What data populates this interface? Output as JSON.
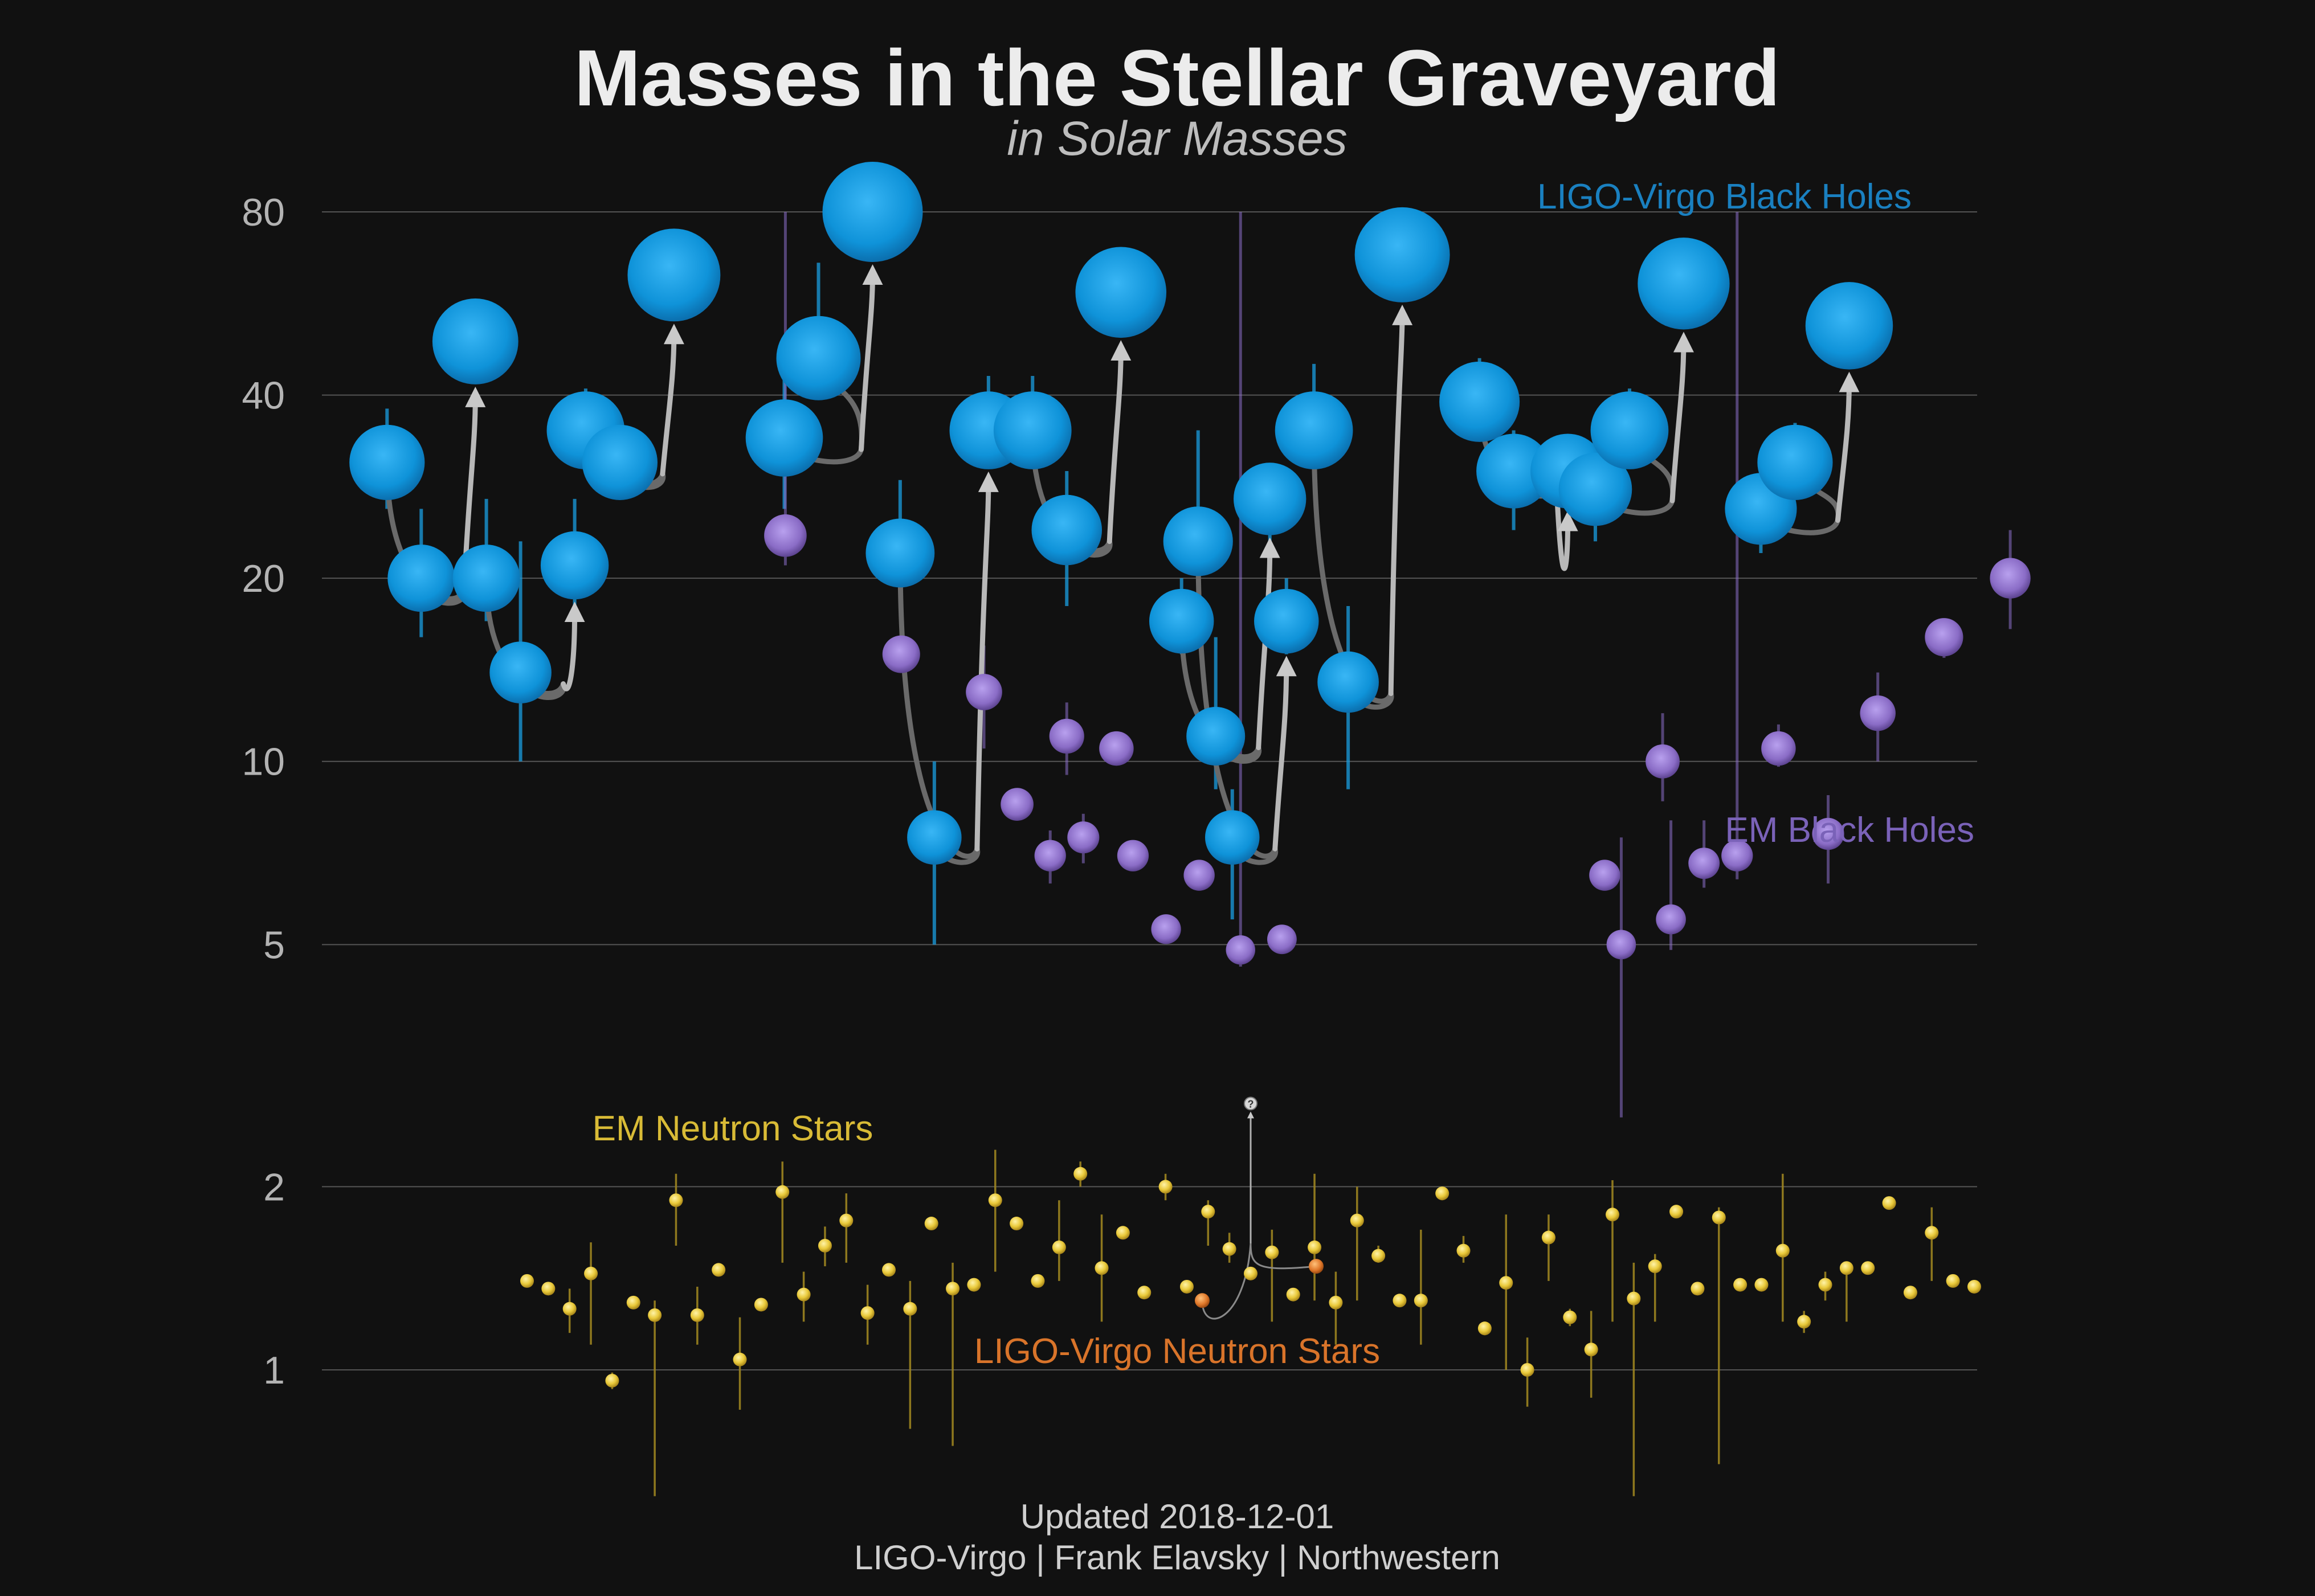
{
  "chart_data": {
    "type": "scatter",
    "title": "Masses in the Stellar Graveyard",
    "subtitle": "in Solar Masses",
    "yscale": "log",
    "ylim": [
      0.6,
      90
    ],
    "yticks": [
      1,
      2,
      5,
      10,
      20,
      40,
      80
    ],
    "ytick_labels": [
      "1",
      "2",
      "5",
      "10",
      "20",
      "40",
      "80"
    ],
    "grid": true,
    "legend_labels": {
      "ligo_bh": "LIGO-Virgo Black Holes",
      "em_bh": "EM Black Holes",
      "em_ns": "EM Neutron Stars",
      "ligo_ns": "LIGO-Virgo Neutron Stars"
    },
    "footer": {
      "updated": "Updated 2018-12-01",
      "credit": "LIGO-Virgo | Frank Elavsky | Northwestern"
    },
    "colors": {
      "ligo_bh": "#1a9de0",
      "em_bh": "#8c6fc9",
      "em_ns": "#e6c83a",
      "ligo_ns": "#e07a2a",
      "arrow": "#b8b8b8",
      "grid": "#555555"
    },
    "ligo_bh_mergers": [
      {
        "x": 0.06,
        "m1": 31,
        "m1_err": [
          26,
          38
        ],
        "m2": 20,
        "m2_err": [
          16,
          26
        ],
        "final": 49,
        "final_err": [
          44,
          54
        ]
      },
      {
        "x": 0.18,
        "m1": 35,
        "m1_err": [
          31,
          41
        ],
        "m2": 31,
        "m2_err": [
          28,
          35
        ],
        "final": 63,
        "final_err": [
          58,
          68
        ]
      },
      {
        "x": 0.3,
        "m1": 34,
        "m1_err": [
          26,
          43
        ],
        "m2": 46,
        "m2_err": [
          41,
          66
        ],
        "final": 80,
        "final_err": [
          73,
          88
        ]
      },
      {
        "x": 0.12,
        "m1": 20,
        "m1_err": [
          17,
          27
        ],
        "m2": 14,
        "m2_err": [
          10,
          23
        ],
        "final": 21,
        "final_err": [
          18,
          27
        ]
      },
      {
        "x": 0.37,
        "m1": 22,
        "m1_err": [
          19,
          29
        ],
        "m2": 7.5,
        "m2_err": [
          5,
          10
        ],
        "final": 35,
        "final_err": [
          31,
          43
        ]
      },
      {
        "x": 0.45,
        "m1": 35,
        "m1_err": [
          31,
          43
        ],
        "m2": 24,
        "m2_err": [
          18,
          30
        ],
        "final": 59,
        "final_err": [
          54,
          64
        ]
      },
      {
        "x": 0.54,
        "m1": 17,
        "m1_err": [
          15,
          20
        ],
        "m2": 11,
        "m2_err": [
          9,
          16
        ],
        "final": 27,
        "final_err": [
          23,
          30
        ]
      },
      {
        "x": 0.55,
        "m1": 23,
        "m1_err": [
          18,
          35
        ],
        "m2": 7.5,
        "m2_err": [
          5.5,
          9
        ],
        "final": 17,
        "final_err": [
          15,
          20
        ]
      },
      {
        "x": 0.62,
        "m1": 35,
        "m1_err": [
          30,
          45
        ],
        "m2": 13.5,
        "m2_err": [
          9,
          18
        ],
        "final": 68,
        "final_err": [
          62,
          75
        ]
      },
      {
        "x": 0.72,
        "m1": 39,
        "m1_err": [
          34,
          46
        ],
        "m2": 30,
        "m2_err": [
          24,
          35
        ],
        "final": 30,
        "final_err": [
          26,
          33
        ]
      },
      {
        "x": 0.79,
        "m1": 28,
        "m1_err": [
          23,
          32
        ],
        "m2": 35,
        "m2_err": [
          31,
          41
        ],
        "final": 61,
        "final_err": [
          56,
          66
        ]
      },
      {
        "x": 0.89,
        "m1": 26,
        "m1_err": [
          22,
          30
        ],
        "m2": 31,
        "m2_err": [
          28,
          36
        ],
        "final": 52,
        "final_err": [
          47,
          57
        ]
      }
    ],
    "em_bh": [
      {
        "x": 0.28,
        "m": 23.5,
        "err": [
          21,
          80
        ]
      },
      {
        "x": 0.35,
        "m": 15,
        "err": [
          14.5,
          15.5
        ]
      },
      {
        "x": 0.4,
        "m": 13,
        "err": [
          10.5,
          15.5
        ]
      },
      {
        "x": 0.42,
        "m": 8.5,
        "err": [
          8.3,
          8.7
        ]
      },
      {
        "x": 0.44,
        "m": 7,
        "err": [
          6.3,
          7.7
        ]
      },
      {
        "x": 0.45,
        "m": 11,
        "err": [
          9.5,
          12.5
        ]
      },
      {
        "x": 0.46,
        "m": 7.5,
        "err": [
          6.8,
          8.2
        ]
      },
      {
        "x": 0.48,
        "m": 10.5,
        "err": [
          10.2,
          10.8
        ]
      },
      {
        "x": 0.49,
        "m": 7,
        "err": [
          6.6,
          7.4
        ]
      },
      {
        "x": 0.51,
        "m": 5.3,
        "err": [
          5.1,
          5.5
        ]
      },
      {
        "x": 0.53,
        "m": 6.5,
        "err": [
          6.2,
          6.8
        ]
      },
      {
        "x": 0.555,
        "m": 4.9,
        "err": [
          4.6,
          80
        ]
      },
      {
        "x": 0.58,
        "m": 5.1,
        "err": [
          4.9,
          5.3
        ]
      },
      {
        "x": 0.775,
        "m": 6.5,
        "err": [
          6.3,
          6.7
        ]
      },
      {
        "x": 0.785,
        "m": 5,
        "err": [
          2.6,
          7.5
        ]
      },
      {
        "x": 0.81,
        "m": 10,
        "err": [
          8.6,
          12
        ]
      },
      {
        "x": 0.815,
        "m": 5.5,
        "err": [
          4.9,
          8
        ]
      },
      {
        "x": 0.835,
        "m": 6.8,
        "err": [
          6.2,
          8
        ]
      },
      {
        "x": 0.855,
        "m": 7,
        "err": [
          6.4,
          80
        ]
      },
      {
        "x": 0.88,
        "m": 10.5,
        "err": [
          9.8,
          11.5
        ]
      },
      {
        "x": 0.91,
        "m": 7.6,
        "err": [
          6.3,
          8.8
        ]
      },
      {
        "x": 0.94,
        "m": 12,
        "err": [
          10,
          14
        ]
      },
      {
        "x": 0.98,
        "m": 16,
        "err": [
          14.8,
          17
        ]
      },
      {
        "x": 1.02,
        "m": 20,
        "err": [
          16.5,
          24
        ]
      }
    ],
    "em_ns": [
      {
        "m": 1.4,
        "err": [
          1.38,
          1.42
        ]
      },
      {
        "m": 1.36,
        "err": [
          1.34,
          1.38
        ]
      },
      {
        "m": 1.26,
        "err": [
          1.15,
          1.36
        ]
      },
      {
        "m": 1.44,
        "err": [
          1.1,
          1.62
        ]
      },
      {
        "m": 0.96,
        "err": [
          0.93,
          0.99
        ]
      },
      {
        "m": 1.29,
        "err": [
          1.27,
          1.31
        ]
      },
      {
        "m": 1.23,
        "err": [
          0.6,
          1.3
        ]
      },
      {
        "m": 1.9,
        "err": [
          1.6,
          2.1
        ]
      },
      {
        "m": 1.23,
        "err": [
          1.1,
          1.37
        ]
      },
      {
        "m": 1.46,
        "err": [
          1.44,
          1.48
        ]
      },
      {
        "m": 1.04,
        "err": [
          0.86,
          1.22
        ]
      },
      {
        "m": 1.28,
        "err": [
          1.26,
          1.3
        ]
      },
      {
        "m": 1.96,
        "err": [
          1.5,
          2.2
        ]
      },
      {
        "m": 1.33,
        "err": [
          1.2,
          1.45
        ]
      },
      {
        "m": 1.6,
        "err": [
          1.48,
          1.72
        ]
      },
      {
        "m": 1.76,
        "err": [
          1.5,
          1.95
        ]
      },
      {
        "m": 1.24,
        "err": [
          1.1,
          1.38
        ]
      },
      {
        "m": 1.46,
        "err": [
          1.43,
          1.49
        ]
      },
      {
        "m": 1.26,
        "err": [
          0.8,
          1.4
        ]
      },
      {
        "m": 1.74,
        "err": [
          1.71,
          1.77
        ]
      },
      {
        "m": 1.36,
        "err": [
          0.75,
          1.5
        ]
      },
      {
        "m": 1.38,
        "err": [
          1.35,
          1.41
        ]
      },
      {
        "m": 1.9,
        "err": [
          1.45,
          2.3
        ]
      },
      {
        "m": 1.74,
        "err": [
          1.72,
          1.76
        ]
      },
      {
        "m": 1.4,
        "err": [
          1.38,
          1.42
        ]
      },
      {
        "m": 1.59,
        "err": [
          1.4,
          1.9
        ]
      },
      {
        "m": 2.1,
        "err": [
          2.0,
          2.2
        ]
      },
      {
        "m": 1.47,
        "err": [
          1.2,
          1.8
        ]
      },
      {
        "m": 1.68,
        "err": [
          1.66,
          1.7
        ]
      },
      {
        "m": 1.34,
        "err": [
          1.32,
          1.36
        ]
      },
      {
        "m": 2.0,
        "err": [
          1.9,
          2.1
        ]
      },
      {
        "m": 1.37,
        "err": [
          1.35,
          1.39
        ]
      },
      {
        "m": 1.82,
        "err": [
          1.6,
          1.9
        ]
      },
      {
        "m": 1.58,
        "err": [
          1.5,
          1.68
        ]
      },
      {
        "m": 1.44,
        "err": [
          1.42,
          1.46
        ]
      },
      {
        "m": 1.56,
        "err": [
          1.2,
          1.7
        ]
      },
      {
        "m": 1.33,
        "err": [
          1.31,
          1.35
        ]
      },
      {
        "m": 1.59,
        "err": [
          1.3,
          2.1
        ]
      },
      {
        "m": 1.29,
        "err": [
          1.1,
          1.45
        ]
      },
      {
        "m": 1.76,
        "err": [
          1.3,
          2.0
        ]
      },
      {
        "m": 1.54,
        "err": [
          1.5,
          1.6
        ]
      },
      {
        "m": 1.3,
        "err": [
          1.28,
          1.32
        ]
      },
      {
        "m": 1.3,
        "err": [
          1.1,
          1.7
        ]
      },
      {
        "m": 1.95,
        "err": [
          1.9,
          2.0
        ]
      },
      {
        "m": 1.57,
        "err": [
          1.5,
          1.66
        ]
      },
      {
        "m": 1.17,
        "err": [
          1.14,
          1.2
        ]
      },
      {
        "m": 1.39,
        "err": [
          1.0,
          1.8
        ]
      },
      {
        "m": 1.0,
        "err": [
          0.87,
          1.13
        ]
      },
      {
        "m": 1.65,
        "err": [
          1.4,
          1.8
        ]
      },
      {
        "m": 1.22,
        "err": [
          1.18,
          1.26
        ]
      },
      {
        "m": 1.08,
        "err": [
          0.9,
          1.25
        ]
      },
      {
        "m": 1.8,
        "err": [
          1.2,
          2.05
        ]
      },
      {
        "m": 1.31,
        "err": [
          0.55,
          1.5
        ]
      },
      {
        "m": 1.48,
        "err": [
          1.2,
          1.55
        ]
      },
      {
        "m": 1.82,
        "err": [
          1.8,
          1.84
        ]
      },
      {
        "m": 1.36,
        "err": [
          1.34,
          1.38
        ]
      },
      {
        "m": 1.78,
        "err": [
          0.7,
          1.85
        ]
      },
      {
        "m": 1.38,
        "err": [
          1.36,
          1.4
        ]
      },
      {
        "m": 1.38,
        "err": [
          1.36,
          1.4
        ]
      },
      {
        "m": 1.57,
        "err": [
          1.2,
          2.1
        ]
      },
      {
        "m": 1.2,
        "err": [
          1.15,
          1.25
        ]
      },
      {
        "m": 1.38,
        "err": [
          1.3,
          1.45
        ]
      },
      {
        "m": 1.47,
        "err": [
          1.2,
          1.5
        ]
      },
      {
        "m": 1.47,
        "err": [
          1.44,
          1.5
        ]
      },
      {
        "m": 1.88,
        "err": [
          1.86,
          1.9
        ]
      },
      {
        "m": 1.34,
        "err": [
          1.32,
          1.36
        ]
      },
      {
        "m": 1.68,
        "err": [
          1.4,
          1.85
        ]
      },
      {
        "m": 1.4,
        "err": [
          1.38,
          1.42
        ]
      },
      {
        "m": 1.37,
        "err": [
          1.35,
          1.39
        ]
      }
    ],
    "ligo_ns_merger": {
      "m1": 1.3,
      "m2": 1.48,
      "final": 2.74,
      "final_label": "?"
    }
  }
}
